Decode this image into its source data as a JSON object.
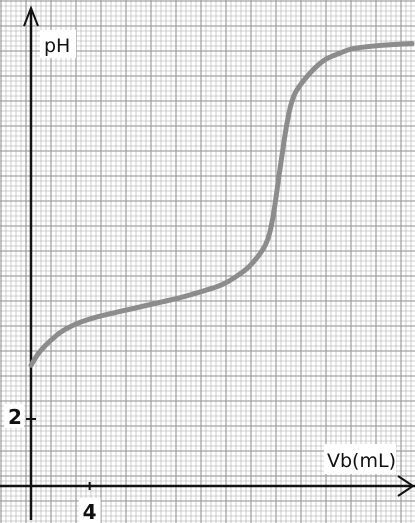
{
  "chart_data": {
    "type": "line",
    "title": "",
    "ylabel": "pH",
    "xlabel": "Vb(mL)",
    "grid": true,
    "xlim": [
      0,
      26.2
    ],
    "ylim": [
      0,
      14.5
    ],
    "ticks": {
      "x": [
        {
          "value": 4,
          "label": "4"
        }
      ],
      "y": [
        {
          "value": 2,
          "label": "2"
        }
      ]
    },
    "series": [
      {
        "name": "",
        "points": [
          [
            0,
            3.6
          ],
          [
            0.5,
            3.95
          ],
          [
            1,
            4.2
          ],
          [
            2,
            4.58
          ],
          [
            3,
            4.82
          ],
          [
            4,
            4.98
          ],
          [
            5,
            5.1
          ],
          [
            6,
            5.2
          ],
          [
            7,
            5.3
          ],
          [
            8,
            5.4
          ],
          [
            9,
            5.5
          ],
          [
            10,
            5.6
          ],
          [
            11,
            5.72
          ],
          [
            12,
            5.85
          ],
          [
            13,
            6.0
          ],
          [
            14,
            6.25
          ],
          [
            15,
            6.6
          ],
          [
            16,
            7.2
          ],
          [
            16.5,
            8.0
          ],
          [
            17,
            9.5
          ],
          [
            17.5,
            10.9
          ],
          [
            18,
            11.7
          ],
          [
            19,
            12.3
          ],
          [
            20,
            12.7
          ],
          [
            21,
            12.9
          ],
          [
            22,
            13.05
          ],
          [
            24,
            13.15
          ],
          [
            26,
            13.2
          ]
        ]
      }
    ],
    "colors": {
      "grid": "#9a9a9a",
      "axis": "#111111",
      "curve": "#8c8c8c"
    }
  }
}
